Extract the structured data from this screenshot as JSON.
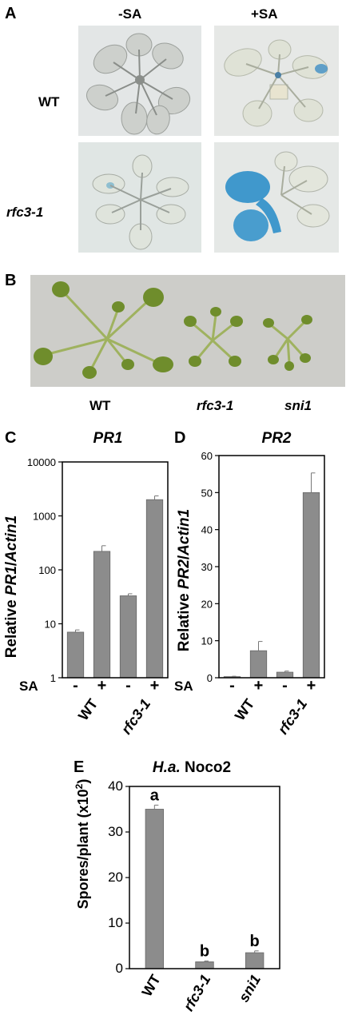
{
  "panel_a": {
    "letter": "A",
    "columns": [
      "-SA",
      "+SA"
    ],
    "rows": [
      {
        "label": "WT",
        "italic": false
      },
      {
        "label": "rfc3-1",
        "italic": true
      }
    ]
  },
  "panel_b": {
    "letter": "B",
    "labels": [
      {
        "text": "WT",
        "italic": false
      },
      {
        "text": "rfc3-1",
        "italic": true
      },
      {
        "text": "sni1",
        "italic": true
      }
    ]
  },
  "colors": {
    "bar": "#8c8c8c",
    "photo_bg_a": "#e3e6e6",
    "photo_bg_b": "#cdcdc9",
    "leaf_green": "#6f8d2c",
    "gus_blue": "#2e8fc9"
  },
  "chart_data": [
    {
      "id": "C",
      "letter": "C",
      "type": "bar",
      "title": "PR1",
      "ylabel_prefix": "Relative ",
      "ylabel_gene": "PR1",
      "ylabel_sep": "/",
      "ylabel_ref": "Actin1",
      "yscale": "log",
      "ylim": [
        1,
        10000
      ],
      "yticks": [
        1,
        10,
        100,
        1000,
        10000
      ],
      "ytick_labels": [
        "1",
        "10",
        "100",
        "1000",
        "10000"
      ],
      "sa_prefix": "SA",
      "sa_marks": [
        "-",
        "+",
        "-",
        "+"
      ],
      "genotype_labels": [
        {
          "text": "WT",
          "italic": false
        },
        {
          "text": "rfc3-1",
          "italic": true
        }
      ],
      "values": [
        7,
        220,
        33,
        2000
      ],
      "errors": [
        0.7,
        60,
        3,
        350
      ]
    },
    {
      "id": "D",
      "letter": "D",
      "type": "bar",
      "title": "PR2",
      "ylabel_prefix": "Relative ",
      "ylabel_gene": "PR2",
      "ylabel_sep": "/",
      "ylabel_ref": "Actin1",
      "yscale": "linear",
      "ylim": [
        0,
        60
      ],
      "yticks": [
        0,
        10,
        20,
        30,
        40,
        50,
        60
      ],
      "ytick_labels": [
        "0",
        "10",
        "20",
        "30",
        "40",
        "50",
        "60"
      ],
      "sa_prefix": "SA",
      "sa_marks": [
        "-",
        "+",
        "-",
        "+"
      ],
      "genotype_labels": [
        {
          "text": "WT",
          "italic": false
        },
        {
          "text": "rfc3-1",
          "italic": true
        }
      ],
      "values": [
        0.3,
        7.3,
        1.5,
        50
      ],
      "errors": [
        0.1,
        2.5,
        0.3,
        5.3
      ]
    },
    {
      "id": "E",
      "letter": "E",
      "type": "bar",
      "title_italic": "H.a.",
      "title_rest": " Noco2",
      "ylabel_text": "Spores/plant (x10",
      "ylabel_sup": "2",
      "ylabel_close": ")",
      "yscale": "linear",
      "ylim": [
        0,
        40
      ],
      "yticks": [
        0,
        10,
        20,
        30,
        40
      ],
      "ytick_labels": [
        "0",
        "10",
        "20",
        "30",
        "40"
      ],
      "categories": [
        {
          "text": "WT",
          "italic": false
        },
        {
          "text": "rfc3-1",
          "italic": true
        },
        {
          "text": "sni1",
          "italic": true
        }
      ],
      "values": [
        35,
        1.5,
        3.5
      ],
      "errors": [
        0.9,
        0.2,
        0.4
      ],
      "letters": [
        "a",
        "b",
        "b"
      ]
    }
  ]
}
